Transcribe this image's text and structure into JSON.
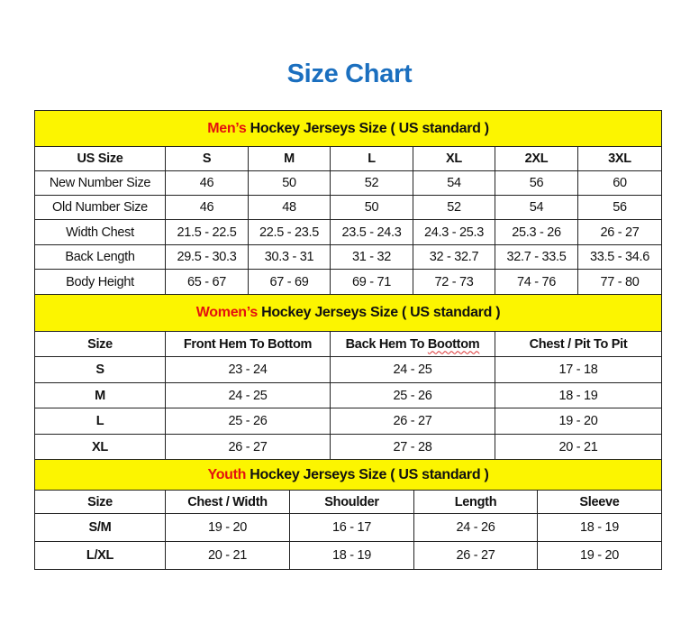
{
  "title": "Size Chart",
  "colors": {
    "title": "#1b6fbf",
    "banner": "#fcf500",
    "accent": "#e4110f"
  },
  "men": {
    "banner_accent": "Men’s",
    "banner_rest": " Hockey Jerseys Size ( US standard )",
    "headers": [
      "US Size",
      "S",
      "M",
      "L",
      "XL",
      "2XL",
      "3XL"
    ],
    "rows": [
      [
        "New Number Size",
        "46",
        "50",
        "52",
        "54",
        "56",
        "60"
      ],
      [
        "Old Number Size",
        "46",
        "48",
        "50",
        "52",
        "54",
        "56"
      ],
      [
        "Width Chest",
        "21.5 - 22.5",
        "22.5 - 23.5",
        "23.5 - 24.3",
        "24.3 - 25.3",
        "25.3 - 26",
        "26 - 27"
      ],
      [
        "Back Length",
        "29.5 - 30.3",
        "30.3 - 31",
        "31 - 32",
        "32 - 32.7",
        "32.7 - 33.5",
        "33.5 - 34.6"
      ],
      [
        "Body Height",
        "65 - 67",
        "67 - 69",
        "69 - 71",
        "72 - 73",
        "74 - 76",
        "77 - 80"
      ]
    ]
  },
  "women": {
    "banner_accent": "Women’s",
    "banner_rest": " Hockey Jerseys Size ( US standard )",
    "headers": [
      "Size",
      "Front Hem To Bottom",
      "Back Hem To Boottom",
      "Chest / Pit To Pit"
    ],
    "rows": [
      [
        "S",
        "23 - 24",
        "24 - 25",
        "17 - 18"
      ],
      [
        "M",
        "24 - 25",
        "25 - 26",
        "18 - 19"
      ],
      [
        "L",
        "25 - 26",
        "26 - 27",
        "19 - 20"
      ],
      [
        "XL",
        "26 - 27",
        "27 - 28",
        "20 - 21"
      ]
    ]
  },
  "youth": {
    "banner_accent": "Youth",
    "banner_rest": " Hockey Jerseys Size ( US standard )",
    "headers": [
      "Size",
      "Chest / Width",
      "Shoulder",
      "Length",
      "Sleeve"
    ],
    "rows": [
      [
        "S/M",
        "19 - 20",
        "16 - 17",
        "24 - 26",
        "18 - 19"
      ],
      [
        "L/XL",
        "20 - 21",
        "18 - 19",
        "26 - 27",
        "19 - 20"
      ]
    ]
  }
}
